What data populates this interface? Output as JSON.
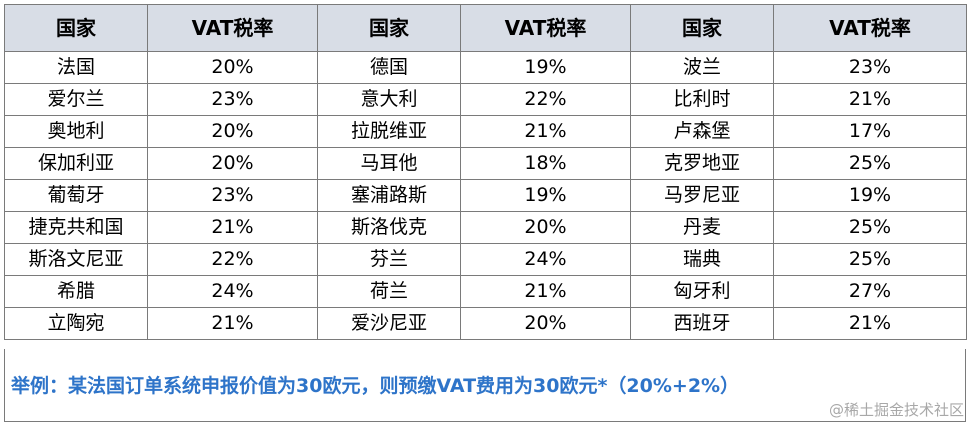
{
  "headers": [
    "国家",
    "VAT税率",
    "国家",
    "VAT税率",
    "国家",
    "VAT税率"
  ],
  "rows": [
    [
      "法国",
      "20%",
      "德国",
      "19%",
      "波兰",
      "23%"
    ],
    [
      "爱尔兰",
      "23%",
      "意大利",
      "22%",
      "比利时",
      "21%"
    ],
    [
      "奥地利",
      "20%",
      "拉脱维亚",
      "21%",
      "卢森堡",
      "17%"
    ],
    [
      "保加利亚",
      "20%",
      "马耳他",
      "18%",
      "克罗地亚",
      "25%"
    ],
    [
      "葡萄牙",
      "23%",
      "塞浦路斯",
      "19%",
      "马罗尼亚",
      "19%"
    ],
    [
      "捷克共和国",
      "21%",
      "斯洛伐克",
      "20%",
      "丹麦",
      "25%"
    ],
    [
      "斯洛文尼亚",
      "22%",
      "芬兰",
      "24%",
      "瑞典",
      "25%"
    ],
    [
      "希腊",
      "24%",
      "荷兰",
      "21%",
      "匈牙利",
      "27%"
    ],
    [
      "立陶宛",
      "21%",
      "爱沙尼亚",
      "20%",
      "西班牙",
      "21%"
    ]
  ],
  "example": "举例：某法国订单系统申报价值为30欧元，则预缴VAT费用为30欧元*（20%+2%）",
  "watermark": "@稀土掘金技术社区",
  "colors": {
    "header_bg": "#d8dde6",
    "example_text": "#2e74c9",
    "border": "#7a7a7a"
  }
}
